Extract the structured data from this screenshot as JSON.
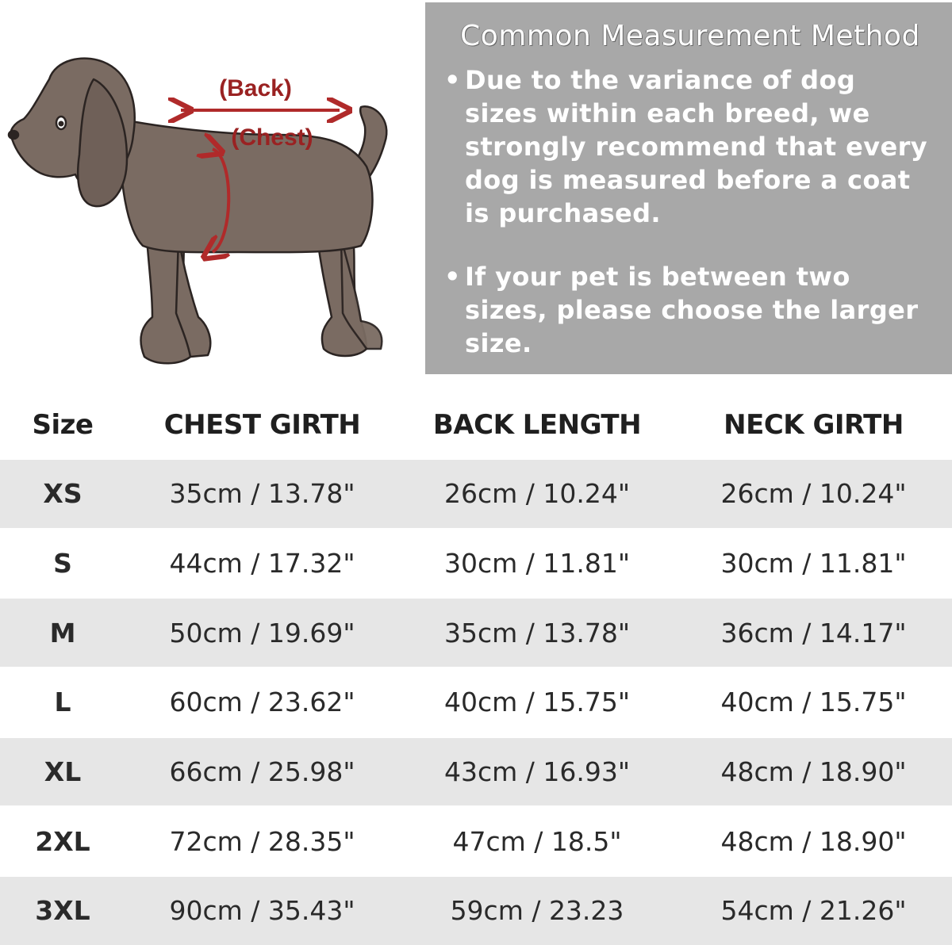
{
  "illustration": {
    "back_label": "(Back)",
    "chest_label": "(Chest)",
    "dog_color": "#7a6b62",
    "arrow_color": "#b02a2a"
  },
  "info": {
    "title": "Common Measurement Method",
    "bullets": [
      "Due to the variance of dog sizes within each breed, we strongly recommend that every dog is measured before a coat is purchased.",
      "If your pet is between two sizes, please choose the larger size."
    ],
    "panel_color": "#a8a8a8"
  },
  "table": {
    "headers": [
      "Size",
      "CHEST GIRTH",
      "BACK LENGTH",
      "NECK GIRTH"
    ],
    "rows": [
      [
        "XS",
        "35cm / 13.78\"",
        "26cm / 10.24\"",
        "26cm / 10.24\""
      ],
      [
        "S",
        "44cm / 17.32\"",
        "30cm / 11.81\"",
        "30cm / 11.81\""
      ],
      [
        "M",
        "50cm / 19.69\"",
        "35cm / 13.78\"",
        "36cm / 14.17\""
      ],
      [
        "L",
        "60cm / 23.62\"",
        "40cm / 15.75\"",
        "40cm / 15.75\""
      ],
      [
        "XL",
        "66cm / 25.98\"",
        "43cm / 16.93\"",
        "48cm / 18.90\""
      ],
      [
        "2XL",
        "72cm / 28.35\"",
        "47cm / 18.5\"",
        "48cm / 18.90\""
      ],
      [
        "3XL",
        "90cm / 35.43\"",
        "59cm / 23.23",
        "54cm / 21.26\""
      ]
    ]
  }
}
